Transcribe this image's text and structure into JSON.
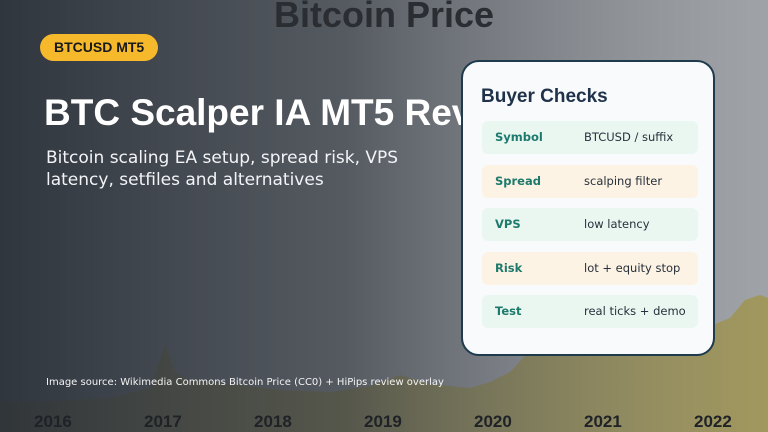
{
  "background": {
    "title": "Bitcoin Price",
    "years": [
      "2016",
      "2017",
      "2018",
      "2019",
      "2020",
      "2021",
      "2022"
    ]
  },
  "badge": "BTCUSD MT5",
  "hero": {
    "title": "BTC Scalper IA MT5 Rev",
    "subtitle": "Bitcoin scaling EA setup, spread risk, VPS latency, setfiles and alternatives"
  },
  "card": {
    "title": "Buyer Checks",
    "rows": [
      {
        "key": "Symbol",
        "value": "BTCUSD / suffix",
        "color": "#eaf7f1"
      },
      {
        "key": "Spread",
        "value": "scalping filter",
        "color": "#fdf3e4"
      },
      {
        "key": "VPS",
        "value": "low latency",
        "color": "#eaf7f1"
      },
      {
        "key": "Risk",
        "value": "lot + equity stop",
        "color": "#fdf3e4"
      },
      {
        "key": "Test",
        "value": "real ticks + demo",
        "color": "#eaf7f1"
      }
    ]
  },
  "source": "Image source: Wikimedia Commons Bitcoin Price (CC0) + HiPips review overlay",
  "colors": {
    "accent": "#f6b92b",
    "card_border": "#1e3a4c",
    "chart_fill": "#a89a4c"
  }
}
